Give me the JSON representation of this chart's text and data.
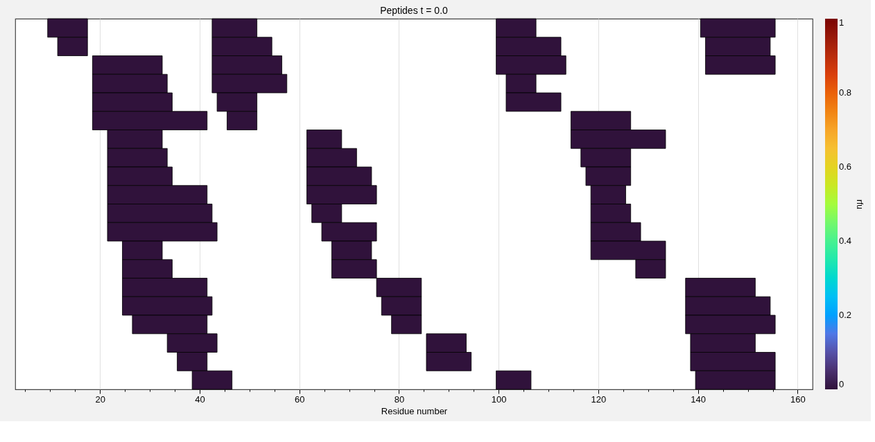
{
  "chart_data": {
    "type": "bar",
    "orientation": "horizontal",
    "title": "Peptides t = 0.0",
    "xlabel": "Residue number",
    "clabel": "rfu",
    "categories": [
      null,
      null,
      null,
      null,
      null,
      null,
      null,
      null,
      null,
      null,
      null,
      null,
      null,
      null,
      null,
      null,
      null,
      null,
      null,
      null
    ],
    "series": [
      {
        "base": [
          9.5,
          11.5,
          18.5,
          18.5,
          18.5,
          18.5,
          21.5,
          21.5,
          21.5,
          21.5,
          21.5,
          21.5,
          24.5,
          24.5,
          24.5,
          24.5,
          26.5,
          33.5,
          35.5,
          38.5
        ],
        "values": [
          8,
          6,
          14,
          15,
          16,
          23,
          11,
          12,
          13,
          20,
          21,
          22,
          8,
          10,
          17,
          18,
          15,
          10,
          6,
          8
        ],
        "cvalues": [
          0,
          0,
          0,
          0,
          0,
          0,
          0,
          0,
          0,
          0,
          0,
          0,
          0,
          0,
          0,
          0,
          0,
          0,
          0,
          0
        ]
      },
      {
        "base": [
          42.5,
          42.5,
          42.5,
          42.5,
          43.5,
          45.5,
          61.5,
          61.5,
          61.5,
          61.5,
          62.5,
          64.5,
          66.5,
          66.5,
          75.5,
          76.5,
          78.5,
          85.5,
          85.5,
          99.5
        ],
        "values": [
          9,
          12,
          14,
          15,
          8,
          6,
          7,
          10,
          13,
          14,
          6,
          11,
          8,
          9,
          9,
          8,
          6,
          8,
          9,
          7
        ],
        "cvalues": [
          0,
          0,
          0,
          0,
          0,
          0,
          0,
          0,
          0,
          0,
          0,
          0,
          0,
          0,
          0,
          0,
          0,
          0,
          0,
          0
        ]
      },
      {
        "base": [
          99.5,
          99.5,
          99.5,
          101.5,
          101.5,
          114.5,
          114.5,
          116.5,
          117.5,
          118.5,
          118.5,
          118.5,
          118.5,
          127.5,
          137.5,
          137.5,
          137.5,
          138.5,
          138.5,
          139.5
        ],
        "values": [
          8,
          13,
          14,
          6,
          11,
          12,
          19,
          10,
          9,
          7,
          8,
          10,
          15,
          6,
          14,
          17,
          18,
          13,
          17,
          16
        ],
        "cvalues": [
          0,
          0,
          0,
          0,
          0,
          0,
          0,
          0,
          0,
          0,
          0,
          0,
          0,
          0,
          0,
          0,
          0,
          0,
          0,
          0
        ]
      },
      {
        "base": [
          140.5,
          141.5,
          141.5,
          null,
          null,
          null,
          null,
          null,
          null,
          null,
          null,
          null,
          null,
          null,
          null,
          null,
          null,
          null,
          null,
          null
        ],
        "values": [
          15,
          13,
          14,
          null,
          null,
          null,
          null,
          null,
          null,
          null,
          null,
          null,
          null,
          null,
          null,
          null,
          null,
          null,
          null,
          null
        ],
        "cvalues": [
          0,
          0,
          0,
          null,
          null,
          null,
          null,
          null,
          null,
          null,
          null,
          null,
          null,
          null,
          null,
          null,
          null,
          null,
          null,
          null
        ]
      }
    ],
    "xlim": [
      3,
      163
    ],
    "xticks": [
      {
        "value": 5,
        "label": null
      },
      {
        "value": 10,
        "label": null
      },
      {
        "value": 15,
        "label": null
      },
      20,
      {
        "value": 25,
        "label": null
      },
      {
        "value": 30,
        "label": null
      },
      {
        "value": 35,
        "label": null
      },
      40,
      {
        "value": 45,
        "label": null
      },
      {
        "value": 50,
        "label": null
      },
      {
        "value": 55,
        "label": null
      },
      60,
      {
        "value": 65,
        "label": null
      },
      {
        "value": 70,
        "label": null
      },
      {
        "value": 75,
        "label": null
      },
      80,
      {
        "value": 85,
        "label": null
      },
      {
        "value": 90,
        "label": null
      },
      {
        "value": 95,
        "label": null
      },
      100,
      {
        "value": 105,
        "label": null
      },
      {
        "value": 110,
        "label": null
      },
      {
        "value": 115,
        "label": null
      },
      120,
      {
        "value": 125,
        "label": null
      },
      {
        "value": 130,
        "label": null
      },
      {
        "value": 135,
        "label": null
      },
      140,
      {
        "value": 145,
        "label": null
      },
      {
        "value": 150,
        "label": null
      },
      {
        "value": 155,
        "label": null
      },
      160
    ],
    "clim": [
      0,
      1
    ],
    "cticks": [
      0,
      0.2,
      0.4,
      0.6,
      0.8,
      1
    ],
    "grid": "x",
    "tick_labels": "x"
  }
}
